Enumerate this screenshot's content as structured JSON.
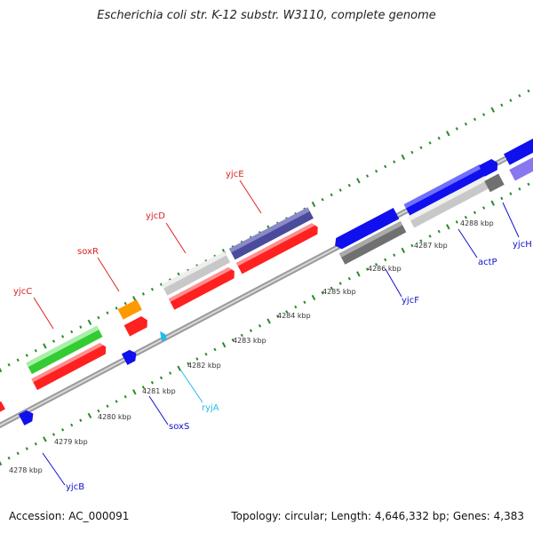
{
  "title": "Escherichia coli str. K-12 substr. W3110, complete genome",
  "footer": {
    "accession": "Accession: AC_000091",
    "summary": "Topology: circular; Length: 4,646,332 bp; Genes: 4,383"
  },
  "colors": {
    "red_feature": "#ff2020",
    "green_feature": "#33cc33",
    "orange_feature": "#ff9900",
    "navy_feature": "#4b4b9c",
    "gray_feature": "#c8c8c8",
    "dark_gray_feature": "#707070",
    "blue_feature": "#1010ee",
    "light_purple_feature": "#8877ee",
    "cyan_feature": "#22bbee",
    "tick_green": "#2a8a2a",
    "backbone": "#8c8c8c"
  },
  "scale_labels": [
    "4278 kbp",
    "4279 kbp",
    "4280 kbp",
    "4281 kbp",
    "4282 kbp",
    "4283 kbp",
    "4284 kbp",
    "4285 kbp",
    "4286 kbp",
    "4287 kbp",
    "4288 kbp"
  ],
  "gene_labels": {
    "yjcC": "yjcC",
    "soxR": "soxR",
    "yjcD": "yjcD",
    "yjcE": "yjcE",
    "ryjA": "ryjA",
    "soxS": "soxS",
    "yjcB": "yjcB",
    "yjcF": "yjcF",
    "actP": "actP",
    "yjcH": "yjcH"
  }
}
